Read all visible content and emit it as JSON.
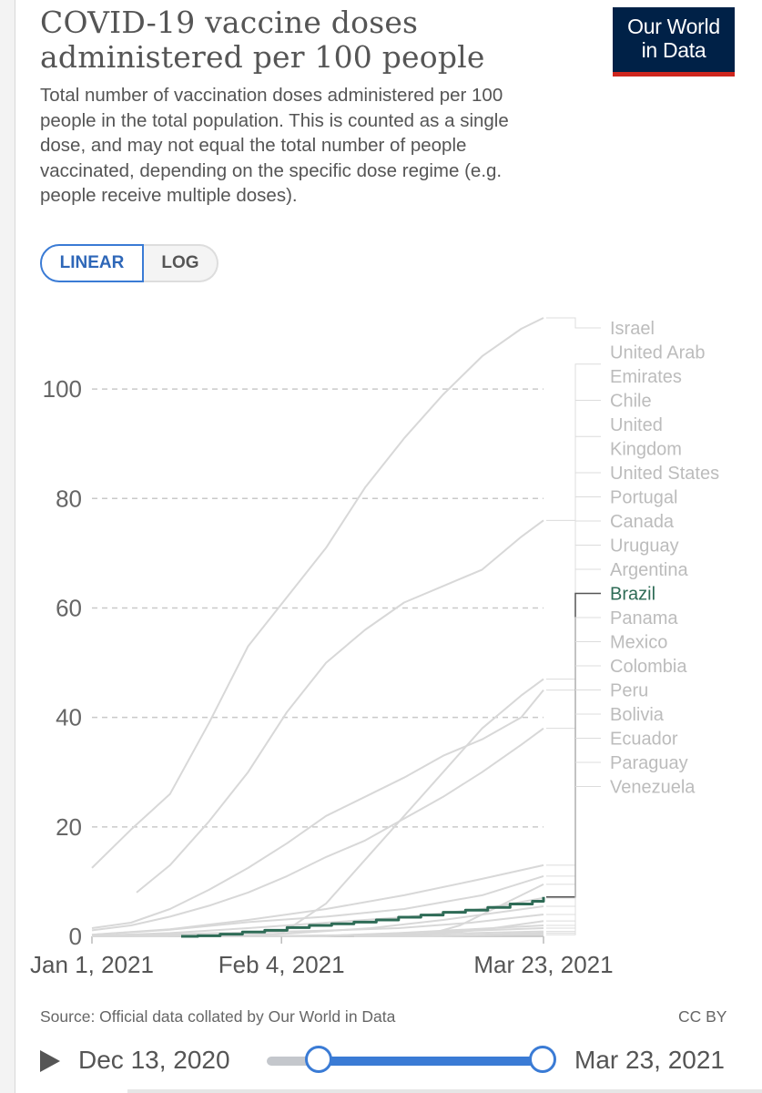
{
  "header": {
    "title": "COVID-19 vaccine doses administered per 100 people",
    "subtitle": "Total number of vaccination doses administered per 100 people in the total population. This is counted as a single dose, and may not equal the total number of people vaccinated, depending on the specific dose regime (e.g. people receive multiple doses).",
    "logo_line1": "Our World",
    "logo_line2": "in Data"
  },
  "scale_toggle": {
    "linear": "LINEAR",
    "log": "LOG",
    "selected": "LINEAR"
  },
  "footer": {
    "source": "Source: Official data collated by Our World in Data",
    "license": "CC BY"
  },
  "timeline": {
    "start_label": "Dec 13, 2020",
    "end_label": "Mar 23, 2021",
    "selection_start_fraction": 0.19,
    "selection_end_fraction": 1.0
  },
  "colors": {
    "highlight": "#2e6b56",
    "muted_line": "#d8d8d8",
    "muted_label": "#bcbcbc",
    "accent": "#3a7bd5",
    "logo_bg": "#002147",
    "logo_underline": "#ce261e"
  },
  "chart_data": {
    "type": "line",
    "x_axis_type": "date",
    "xlim": [
      "2021-01-01",
      "2021-03-23"
    ],
    "ylim": [
      0,
      113
    ],
    "x_ticks": [
      "2021-01-01",
      "2021-02-04",
      "2021-03-23"
    ],
    "x_tick_labels": [
      "Jan 1, 2021",
      "Feb 4, 2021",
      "Mar 23, 2021"
    ],
    "y_ticks": [
      0,
      20,
      40,
      60,
      80,
      100
    ],
    "gridlines": true,
    "highlighted_series": "Brazil",
    "series": [
      {
        "name": "Israel",
        "label_lines": [
          "Israel"
        ],
        "x": [
          "2021-01-01",
          "2021-01-08",
          "2021-01-15",
          "2021-01-22",
          "2021-01-29",
          "2021-02-05",
          "2021-02-12",
          "2021-02-19",
          "2021-02-26",
          "2021-03-05",
          "2021-03-12",
          "2021-03-19",
          "2021-03-23"
        ],
        "y": [
          12.5,
          19.5,
          26,
          39,
          53,
          62,
          71,
          82,
          91,
          99,
          106,
          111,
          113
        ]
      },
      {
        "name": "United Arab Emirates",
        "label_lines": [
          "United Arab",
          "Emirates"
        ],
        "x": [
          "2021-01-09",
          "2021-01-15",
          "2021-01-22",
          "2021-01-29",
          "2021-02-05",
          "2021-02-12",
          "2021-02-19",
          "2021-02-26",
          "2021-03-05",
          "2021-03-12",
          "2021-03-19",
          "2021-03-23"
        ],
        "y": [
          8,
          13,
          21,
          30,
          41,
          50,
          56,
          61,
          64,
          67,
          73,
          76
        ]
      },
      {
        "name": "Chile",
        "label_lines": [
          "Chile"
        ],
        "x": [
          "2021-01-01",
          "2021-01-15",
          "2021-01-31",
          "2021-02-04",
          "2021-02-12",
          "2021-02-19",
          "2021-02-26",
          "2021-03-05",
          "2021-03-12",
          "2021-03-19",
          "2021-03-23"
        ],
        "y": [
          0,
          0.1,
          0.3,
          0.5,
          6,
          14,
          22,
          30,
          38,
          44,
          47
        ]
      },
      {
        "name": "United Kingdom",
        "label_lines": [
          "United",
          "Kingdom"
        ],
        "x": [
          "2021-01-01",
          "2021-01-08",
          "2021-01-15",
          "2021-01-22",
          "2021-01-29",
          "2021-02-05",
          "2021-02-12",
          "2021-02-19",
          "2021-02-26",
          "2021-03-05",
          "2021-03-12",
          "2021-03-19",
          "2021-03-23"
        ],
        "y": [
          1.5,
          2.5,
          5,
          8.5,
          12.5,
          17,
          22,
          25.5,
          29,
          33,
          36,
          40,
          45
        ]
      },
      {
        "name": "United States",
        "label_lines": [
          "United States"
        ],
        "x": [
          "2021-01-01",
          "2021-01-08",
          "2021-01-15",
          "2021-01-22",
          "2021-01-29",
          "2021-02-05",
          "2021-02-12",
          "2021-02-19",
          "2021-02-26",
          "2021-03-05",
          "2021-03-12",
          "2021-03-19",
          "2021-03-23"
        ],
        "y": [
          1.1,
          2,
          3.6,
          5.6,
          8,
          11,
          14.5,
          17.5,
          21.5,
          25.5,
          30,
          35,
          38
        ]
      },
      {
        "name": "Portugal",
        "label_lines": [
          "Portugal"
        ],
        "x": [
          "2021-01-01",
          "2021-01-15",
          "2021-01-29",
          "2021-02-12",
          "2021-02-26",
          "2021-03-12",
          "2021-03-23"
        ],
        "y": [
          0.3,
          1.3,
          3,
          5,
          7.5,
          10.5,
          13
        ]
      },
      {
        "name": "Canada",
        "label_lines": [
          "Canada"
        ],
        "x": [
          "2021-01-01",
          "2021-01-15",
          "2021-01-29",
          "2021-02-12",
          "2021-02-26",
          "2021-03-12",
          "2021-03-23"
        ],
        "y": [
          0.3,
          1.2,
          2.6,
          3.6,
          5,
          7.5,
          11
        ]
      },
      {
        "name": "Uruguay",
        "label_lines": [
          "Uruguay"
        ],
        "x": [
          "2021-03-01",
          "2021-03-08",
          "2021-03-15",
          "2021-03-23"
        ],
        "y": [
          0,
          2,
          5.5,
          9.5
        ]
      },
      {
        "name": "Argentina",
        "label_lines": [
          "Argentina"
        ],
        "x": [
          "2021-01-01",
          "2021-01-15",
          "2021-01-29",
          "2021-02-12",
          "2021-02-26",
          "2021-03-12",
          "2021-03-23"
        ],
        "y": [
          0.1,
          0.6,
          1.5,
          2.5,
          3.5,
          5,
          7
        ]
      },
      {
        "name": "Brazil",
        "label_lines": [
          "Brazil"
        ],
        "highlight": true,
        "x": [
          "2021-01-17",
          "2021-01-20",
          "2021-01-24",
          "2021-01-28",
          "2021-02-01",
          "2021-02-05",
          "2021-02-09",
          "2021-02-13",
          "2021-02-17",
          "2021-02-21",
          "2021-02-25",
          "2021-03-01",
          "2021-03-05",
          "2021-03-09",
          "2021-03-13",
          "2021-03-17",
          "2021-03-21",
          "2021-03-23"
        ],
        "y": [
          0,
          0.1,
          0.4,
          0.8,
          1.1,
          1.6,
          2,
          2.3,
          2.6,
          3,
          3.5,
          3.9,
          4.4,
          4.8,
          5.3,
          5.9,
          6.4,
          7.2
        ]
      },
      {
        "name": "Panama",
        "label_lines": [
          "Panama"
        ],
        "x": [
          "2021-01-20",
          "2021-02-05",
          "2021-02-20",
          "2021-03-05",
          "2021-03-23"
        ],
        "y": [
          0,
          0.5,
          1.5,
          3,
          5.5
        ]
      },
      {
        "name": "Mexico",
        "label_lines": [
          "Mexico"
        ],
        "x": [
          "2021-01-01",
          "2021-01-20",
          "2021-02-10",
          "2021-02-25",
          "2021-03-10",
          "2021-03-23"
        ],
        "y": [
          0,
          0.5,
          1,
          1.5,
          2.5,
          4
        ]
      },
      {
        "name": "Colombia",
        "label_lines": [
          "Colombia"
        ],
        "x": [
          "2021-02-17",
          "2021-03-01",
          "2021-03-12",
          "2021-03-23"
        ],
        "y": [
          0,
          0.3,
          1.2,
          2.8
        ]
      },
      {
        "name": "Peru",
        "label_lines": [
          "Peru"
        ],
        "x": [
          "2021-02-09",
          "2021-02-25",
          "2021-03-10",
          "2021-03-23"
        ],
        "y": [
          0,
          0.6,
          1.3,
          2
        ]
      },
      {
        "name": "Bolivia",
        "label_lines": [
          "Bolivia"
        ],
        "x": [
          "2021-01-29",
          "2021-02-15",
          "2021-03-01",
          "2021-03-23"
        ],
        "y": [
          0,
          0.2,
          0.7,
          1.5
        ]
      },
      {
        "name": "Ecuador",
        "label_lines": [
          "Ecuador"
        ],
        "x": [
          "2021-01-21",
          "2021-02-10",
          "2021-03-01",
          "2021-03-23"
        ],
        "y": [
          0,
          0.1,
          0.4,
          0.9
        ]
      },
      {
        "name": "Paraguay",
        "label_lines": [
          "Paraguay"
        ],
        "x": [
          "2021-02-22",
          "2021-03-08",
          "2021-03-23"
        ],
        "y": [
          0,
          0.2,
          0.6
        ]
      },
      {
        "name": "Venezuela",
        "label_lines": [
          "Venezuela"
        ],
        "x": [
          "2021-02-18",
          "2021-03-05",
          "2021-03-23"
        ],
        "y": [
          0,
          0.1,
          0.3
        ]
      }
    ]
  }
}
